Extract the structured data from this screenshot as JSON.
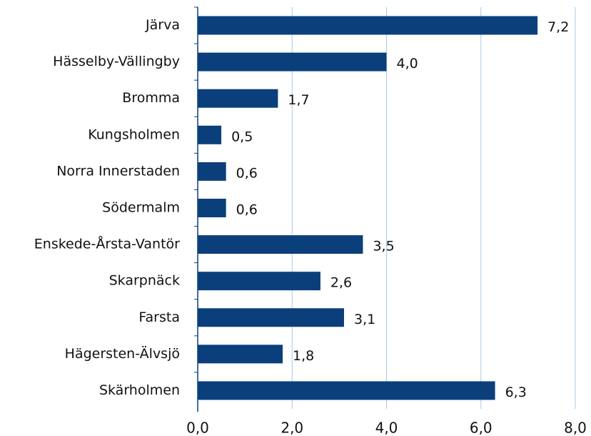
{
  "chart_data": {
    "type": "barh",
    "categories": [
      "Järva",
      "Hässelby-Vällingby",
      "Bromma",
      "Kungsholmen",
      "Norra Innerstaden",
      "Södermalm",
      "Enskede-Årsta-Vantör",
      "Skarpnäck",
      "Farsta",
      "Hägersten-Älvsjö",
      "Skärholmen"
    ],
    "values": [
      7.2,
      4.0,
      1.7,
      0.5,
      0.6,
      0.6,
      3.5,
      2.6,
      3.1,
      1.8,
      6.3
    ],
    "value_labels": [
      "7,2",
      "4,0",
      "1,7",
      "0,5",
      "0,6",
      "0,6",
      "3,5",
      "2,6",
      "3,1",
      "1,8",
      "6,3"
    ],
    "color": "#0b3f7c",
    "xlim": [
      0,
      8
    ],
    "xticks": [
      {
        "value": 0,
        "label": "0,0"
      },
      {
        "value": 2,
        "label": "2,0"
      },
      {
        "value": 4,
        "label": "4,0"
      },
      {
        "value": 6,
        "label": "6,0"
      },
      {
        "value": 8,
        "label": "8,0"
      }
    ],
    "grid": true
  }
}
